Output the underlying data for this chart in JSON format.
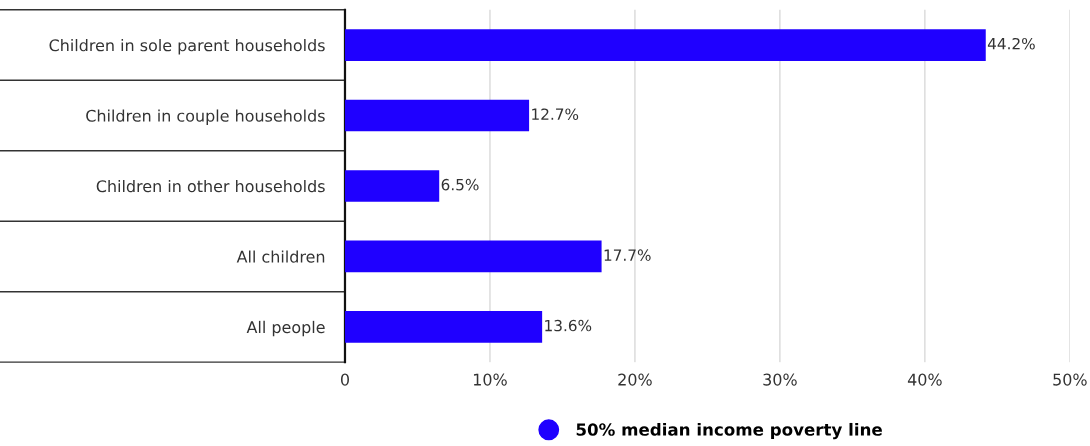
{
  "chart_data": {
    "type": "bar",
    "orientation": "horizontal",
    "categories": [
      "Children in sole parent households",
      "Children in couple households",
      "Children in other households",
      "All children",
      "All people"
    ],
    "series": [
      {
        "name": "50% median income poverty line",
        "color": "#1f00ff",
        "values": [
          44.2,
          12.7,
          6.5,
          17.7,
          13.6
        ],
        "value_labels": [
          "44.2%",
          "12.7%",
          "6.5%",
          "17.7%",
          "13.6%"
        ]
      }
    ],
    "xlim": [
      0,
      50
    ],
    "xticks": [
      0,
      {
        "value": 10,
        "label": "10%"
      },
      {
        "value": 20,
        "label": "20%"
      },
      {
        "value": 30,
        "label": "30%"
      },
      {
        "value": 40,
        "label": "40%"
      },
      {
        "value": 50,
        "label": "50%"
      }
    ],
    "grid": "x",
    "legend": "bottom"
  }
}
